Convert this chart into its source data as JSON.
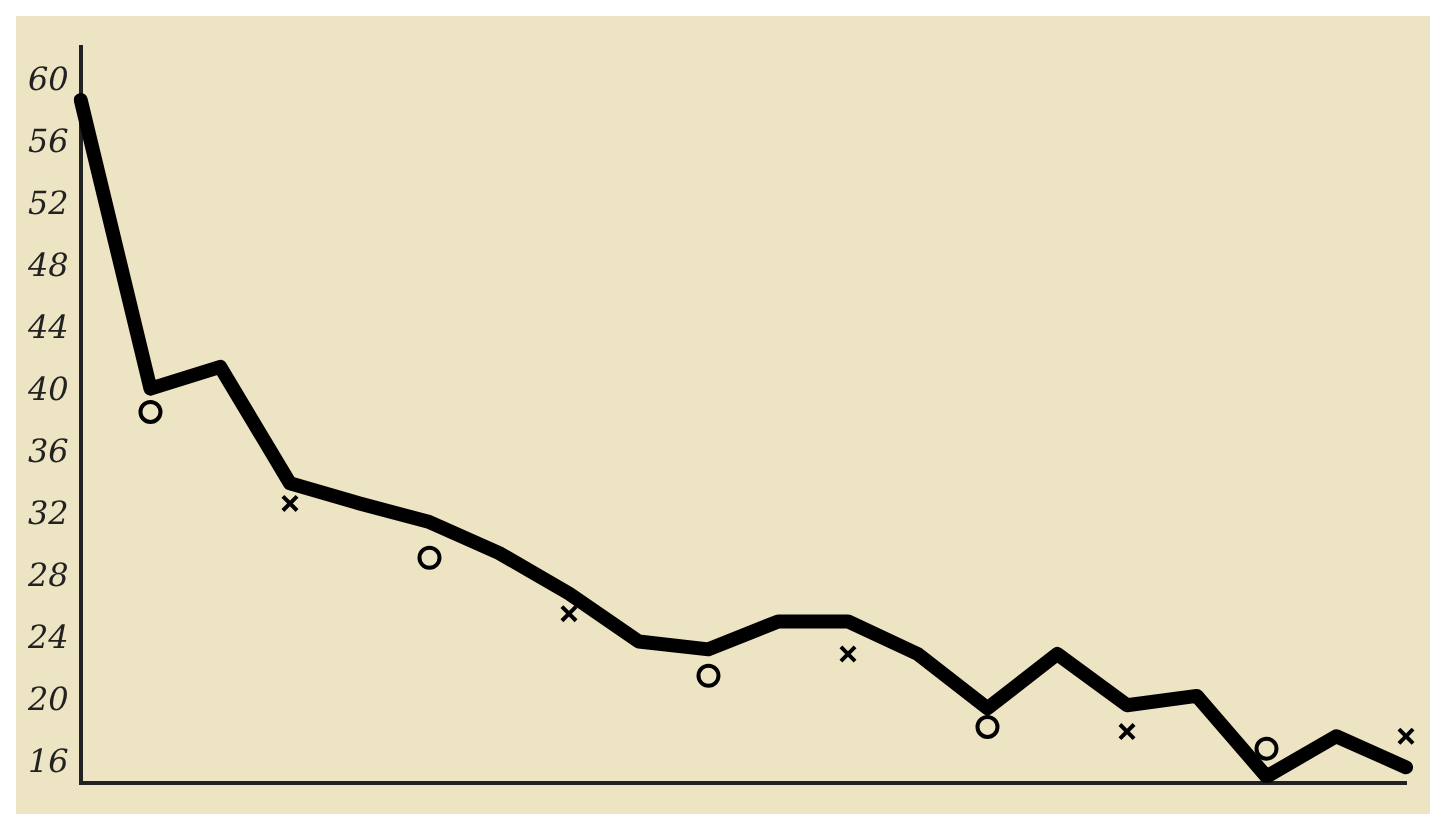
{
  "chart_data": {
    "type": "line",
    "categories": [
      null,
      null,
      null,
      null,
      null,
      null,
      null,
      null,
      null,
      null,
      null,
      null,
      null,
      null,
      null,
      null,
      null,
      null,
      null,
      null
    ],
    "series": [
      {
        "type": "line",
        "color": "#000000",
        "values": [
          58.8,
          40.2,
          41.6,
          34.1,
          32.8,
          31.6,
          29.6,
          27.0,
          23.9,
          23.4,
          25.2,
          25.2,
          23.1,
          19.6,
          23.1,
          19.8,
          20.4,
          15.2,
          17.8,
          15.8
        ]
      },
      {
        "type": "scatter",
        "marker": "circle",
        "color": "#000000",
        "values": [
          null,
          38.7,
          null,
          null,
          null,
          29.3,
          null,
          null,
          null,
          21.7,
          null,
          null,
          null,
          18.4,
          null,
          null,
          null,
          17.0,
          null,
          null
        ]
      },
      {
        "type": "scatter",
        "marker": "cross",
        "color": "#000000",
        "values": [
          null,
          null,
          null,
          32.8,
          null,
          null,
          null,
          25.7,
          null,
          null,
          null,
          23.1,
          null,
          null,
          null,
          18.1,
          null,
          null,
          null,
          17.8
        ]
      }
    ],
    "ylim": [
      14.8,
      62.2
    ],
    "yticks": [
      16,
      20,
      24,
      28,
      32,
      36,
      40,
      44,
      48,
      52,
      56,
      60
    ],
    "grid": false,
    "legend": false,
    "tick_labels": "y"
  }
}
